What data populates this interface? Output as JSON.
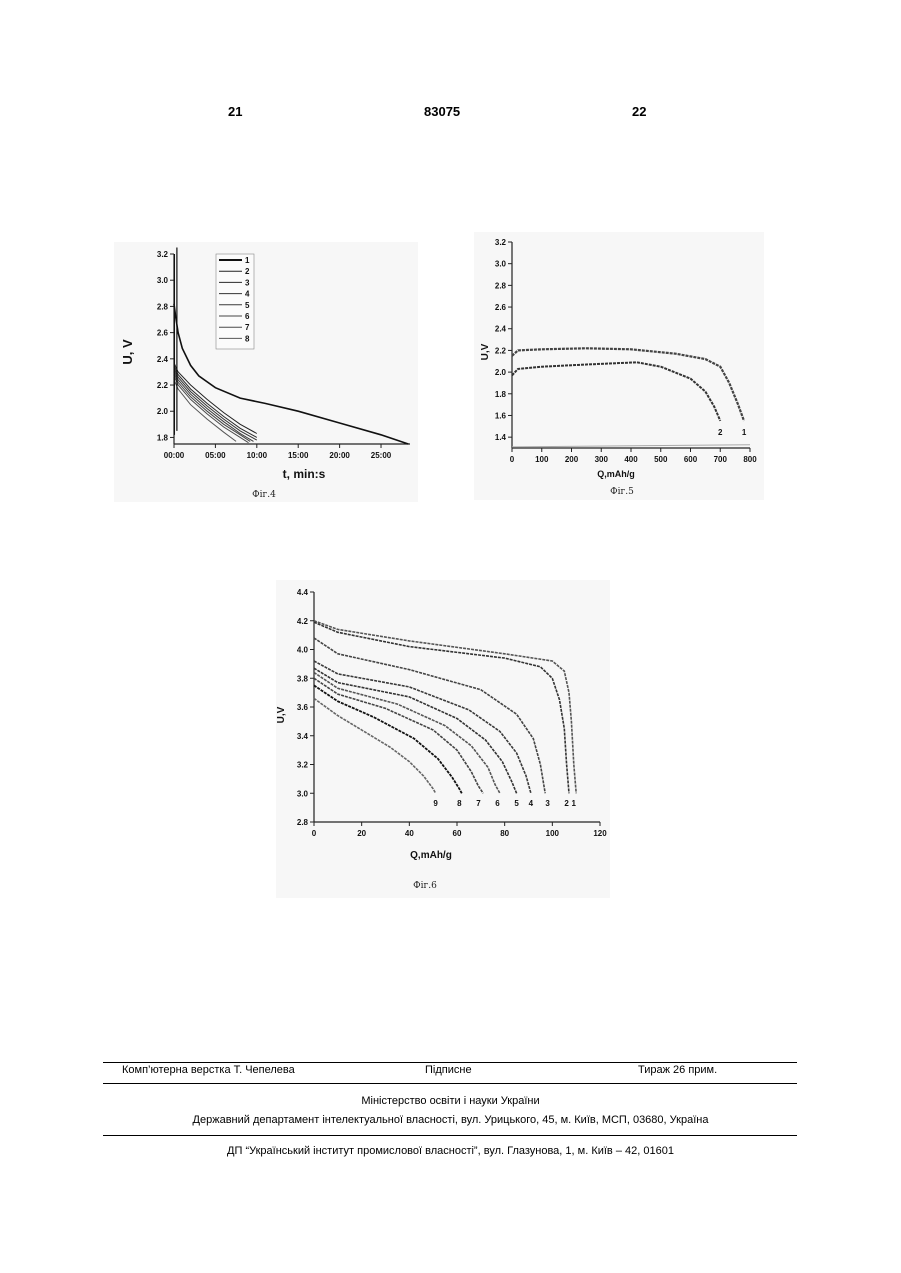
{
  "header": {
    "left_page": "21",
    "patent_no": "83075",
    "right_page": "22"
  },
  "figures": [
    {
      "caption": "Фіг.4",
      "xlabel": "t, min:s",
      "ylabel": "U, V",
      "x_ticks": [
        "00:00",
        "05:00",
        "10:00",
        "15:00",
        "20:00",
        "25:00"
      ],
      "y_ticks": [
        "3.2",
        "3.0",
        "2.8",
        "2.6",
        "2.4",
        "2.2",
        "2.0",
        "1.8"
      ],
      "legend": [
        "1",
        "2",
        "3",
        "4",
        "5",
        "6",
        "7",
        "8"
      ]
    },
    {
      "caption": "Фіг.5",
      "xlabel": "Q,mAh/g",
      "ylabel": "U,V",
      "x_ticks": [
        "0",
        "100",
        "200",
        "300",
        "400",
        "500",
        "600",
        "700",
        "800"
      ],
      "y_ticks": [
        "3.2",
        "3.0",
        "2.8",
        "2.6",
        "2.4",
        "2.2",
        "2.0",
        "1.8",
        "1.6",
        "1.4"
      ],
      "curve_labels": [
        "2",
        "1"
      ]
    },
    {
      "caption": "Фіг.6",
      "xlabel": "Q,mAh/g",
      "ylabel": "U,V",
      "x_ticks": [
        "0",
        "20",
        "40",
        "60",
        "80",
        "100",
        "120"
      ],
      "y_ticks": [
        "4.4",
        "4.2",
        "4.0",
        "3.8",
        "3.6",
        "3.4",
        "3.2",
        "3.0",
        "2.8"
      ],
      "curve_labels": [
        "9",
        "8",
        "7",
        "6",
        "5",
        "4",
        "3",
        "2",
        "1"
      ]
    }
  ],
  "chart_data": [
    {
      "type": "line",
      "ylabel": "U, V",
      "xlabel": "t, min:s",
      "xlim": [
        0,
        28.5
      ],
      "ylim": [
        1.75,
        3.2
      ],
      "legend_placement": "top-left-inside",
      "series": [
        {
          "name": "1",
          "x": [
            0,
            0.2,
            0.5,
            1,
            2,
            3,
            5,
            8,
            11,
            15,
            20,
            25,
            28.3
          ],
          "y": [
            2.82,
            2.72,
            2.6,
            2.48,
            2.35,
            2.27,
            2.18,
            2.1,
            2.06,
            2.0,
            1.91,
            1.82,
            1.75
          ]
        },
        {
          "name": "2",
          "x": [
            0,
            0.5,
            2,
            4,
            6,
            8,
            10
          ],
          "y": [
            2.37,
            2.3,
            2.2,
            2.09,
            1.99,
            1.9,
            1.83
          ]
        },
        {
          "name": "3",
          "x": [
            0,
            0.5,
            2,
            4,
            6,
            8,
            10
          ],
          "y": [
            2.35,
            2.28,
            2.17,
            2.06,
            1.96,
            1.87,
            1.8
          ]
        },
        {
          "name": "4",
          "x": [
            0,
            0.5,
            2,
            4,
            6,
            8,
            10
          ],
          "y": [
            2.33,
            2.26,
            2.15,
            2.04,
            1.94,
            1.85,
            1.78
          ]
        },
        {
          "name": "5",
          "x": [
            0,
            0.5,
            2,
            4,
            6,
            8,
            9.6
          ],
          "y": [
            2.31,
            2.24,
            2.13,
            2.02,
            1.92,
            1.83,
            1.77
          ]
        },
        {
          "name": "6",
          "x": [
            0,
            0.5,
            2,
            4,
            6,
            8,
            9.2
          ],
          "y": [
            2.29,
            2.22,
            2.11,
            2.0,
            1.9,
            1.82,
            1.77
          ]
        },
        {
          "name": "7",
          "x": [
            0,
            0.5,
            2,
            4,
            6,
            8,
            9.0
          ],
          "y": [
            2.27,
            2.2,
            2.09,
            1.98,
            1.88,
            1.8,
            1.76
          ]
        },
        {
          "name": "8",
          "x": [
            0,
            0.5,
            2,
            4,
            6,
            7.5
          ],
          "y": [
            2.24,
            2.17,
            2.05,
            1.94,
            1.84,
            1.77
          ]
        }
      ]
    },
    {
      "type": "line",
      "ylabel": "U,V",
      "xlabel": "Q,mAh/g",
      "xlim": [
        0,
        800
      ],
      "ylim": [
        1.3,
        3.2
      ],
      "series": [
        {
          "name": "1",
          "x": [
            0,
            20,
            100,
            250,
            400,
            550,
            650,
            700,
            730,
            760,
            780
          ],
          "y": [
            2.15,
            2.2,
            2.21,
            2.22,
            2.21,
            2.17,
            2.12,
            2.05,
            1.9,
            1.7,
            1.55
          ]
        },
        {
          "name": "2",
          "x": [
            0,
            20,
            100,
            250,
            420,
            500,
            600,
            650,
            680,
            700
          ],
          "y": [
            1.97,
            2.03,
            2.05,
            2.07,
            2.09,
            2.05,
            1.94,
            1.82,
            1.68,
            1.55
          ]
        }
      ]
    },
    {
      "type": "line",
      "ylabel": "U,V",
      "xlabel": "Q,mAh/g",
      "xlim": [
        0,
        120
      ],
      "ylim": [
        2.8,
        4.4
      ],
      "series": [
        {
          "name": "1",
          "x": [
            0,
            10,
            40,
            80,
            100,
            105,
            107,
            108,
            109,
            110
          ],
          "y": [
            4.2,
            4.14,
            4.06,
            3.97,
            3.92,
            3.85,
            3.7,
            3.5,
            3.2,
            3.0
          ]
        },
        {
          "name": "2",
          "x": [
            0,
            10,
            40,
            80,
            95,
            100,
            103,
            105,
            106,
            107
          ],
          "y": [
            4.19,
            4.12,
            4.02,
            3.94,
            3.88,
            3.8,
            3.65,
            3.45,
            3.2,
            3.0
          ]
        },
        {
          "name": "3",
          "x": [
            0,
            10,
            40,
            70,
            85,
            92,
            95,
            97
          ],
          "y": [
            4.08,
            3.97,
            3.86,
            3.72,
            3.55,
            3.38,
            3.2,
            3.0
          ]
        },
        {
          "name": "4",
          "x": [
            0,
            10,
            40,
            65,
            78,
            85,
            89,
            91
          ],
          "y": [
            3.92,
            3.83,
            3.74,
            3.58,
            3.43,
            3.28,
            3.12,
            3.0
          ]
        },
        {
          "name": "5",
          "x": [
            0,
            10,
            40,
            60,
            72,
            79,
            83,
            85
          ],
          "y": [
            3.87,
            3.77,
            3.67,
            3.52,
            3.37,
            3.22,
            3.08,
            3.0
          ]
        },
        {
          "name": "6",
          "x": [
            0,
            10,
            35,
            55,
            66,
            73,
            76,
            78
          ],
          "y": [
            3.84,
            3.73,
            3.62,
            3.47,
            3.33,
            3.18,
            3.06,
            3.0
          ]
        },
        {
          "name": "7",
          "x": [
            0,
            10,
            30,
            50,
            60,
            66,
            69,
            71
          ],
          "y": [
            3.8,
            3.69,
            3.59,
            3.44,
            3.3,
            3.15,
            3.05,
            3.0
          ]
        },
        {
          "name": "8",
          "x": [
            0,
            10,
            25,
            42,
            52,
            58,
            61,
            62
          ],
          "y": [
            3.75,
            3.64,
            3.53,
            3.38,
            3.24,
            3.11,
            3.03,
            3.0
          ]
        },
        {
          "name": "9",
          "x": [
            0,
            10,
            20,
            32,
            40,
            46,
            50,
            51
          ],
          "y": [
            3.66,
            3.54,
            3.44,
            3.32,
            3.22,
            3.12,
            3.03,
            3.0
          ]
        }
      ]
    }
  ],
  "footer": {
    "layout_by": "Комп’ютерна верстка Т. Чепелева",
    "signed": "Підписне",
    "print_run": "Тираж 26 прим.",
    "ministry": "Міністерство освіти і науки України",
    "department": "Державний департамент інтелектуальної власності, вул. Урицького, 45, м. Київ, МСП, 03680, Україна",
    "institute": "ДП “Український інститут промислової власності”, вул. Глазунова, 1, м. Київ – 42, 01601"
  }
}
